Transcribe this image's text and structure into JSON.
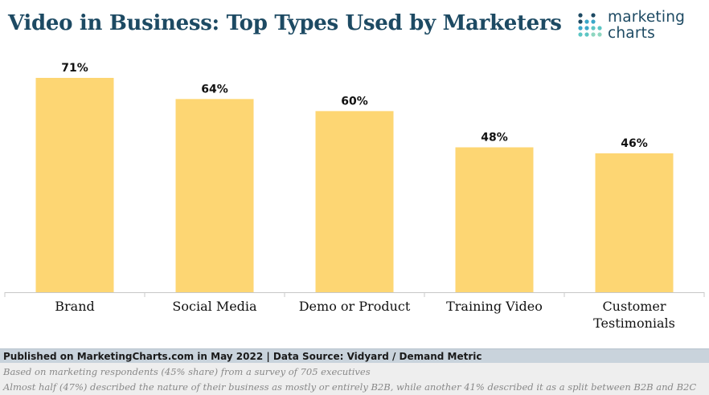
{
  "title": "Video in Business: Top Types Used by Marketers",
  "logo": {
    "line1": "marketing",
    "line2": "charts"
  },
  "colors": {
    "bar": "#fdd673",
    "title": "#1d4a63",
    "axis": "#c8c8c8"
  },
  "chart_data": {
    "type": "bar",
    "categories": [
      [
        "Brand"
      ],
      [
        "Social Media"
      ],
      [
        "Demo or Product"
      ],
      [
        "Training Video"
      ],
      [
        "Customer",
        "Testimonials"
      ]
    ],
    "values": [
      71,
      64,
      60,
      48,
      46
    ],
    "value_labels": [
      "71%",
      "64%",
      "60%",
      "48%",
      "46%"
    ],
    "ylim": [
      0,
      71
    ],
    "grid": false,
    "legend": "none"
  },
  "footer": {
    "published": "Published on MarketingCharts.com in May 2022 | Data Source: Vidyard / Demand Metric",
    "note1": "Based on marketing respondents (45% share) from a survey of 705 executives",
    "note2": "Almost half (47%) described the nature of their business as mostly or entirely B2B, while another 41% described it as a split between B2B and B2C"
  }
}
